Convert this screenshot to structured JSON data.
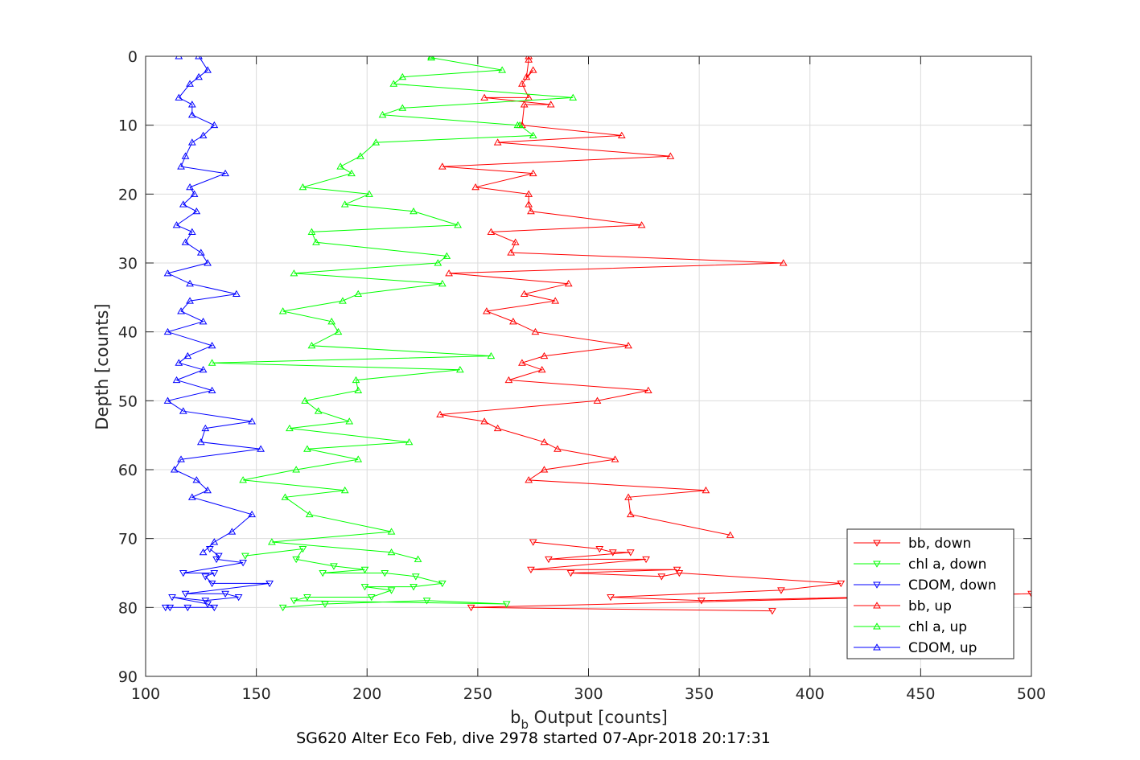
{
  "chart_data": {
    "type": "line",
    "caption": "SG620 Alter Eco Feb, dive 2978 started 07-Apr-2018 20:17:31",
    "xlabel_main": "b",
    "xlabel_sub": "b",
    "xlabel_rest": " Output [counts]",
    "ylabel": "Depth [counts]",
    "xlim": [
      100,
      500
    ],
    "ylim": [
      90,
      0
    ],
    "y_reversed": true,
    "grid": true,
    "legend_position": "bottom-right",
    "xticks": [
      "100",
      "150",
      "200",
      "250",
      "300",
      "350",
      "400",
      "450",
      "500"
    ],
    "yticks": [
      "0",
      "10",
      "20",
      "30",
      "40",
      "50",
      "60",
      "70",
      "80",
      "90"
    ],
    "series": [
      {
        "name": "bb, down",
        "color": "#ff0000",
        "marker": "triangle-down",
        "x": [
          275,
          305,
          311,
          319,
          282,
          326,
          274,
          340,
          292,
          333,
          341,
          414,
          387,
          310,
          351,
          500,
          247,
          383
        ],
        "y": [
          70.5,
          71.5,
          72,
          72,
          73,
          73,
          74.5,
          74.5,
          75,
          75.5,
          75,
          76.5,
          77.5,
          78.5,
          79,
          78,
          80,
          80.5
        ]
      },
      {
        "name": "chl a, down",
        "color": "#00ff00",
        "marker": "triangle-down",
        "x": [
          145,
          171,
          168,
          185,
          199,
          180,
          208,
          222,
          234,
          221,
          199,
          211,
          202,
          173,
          167,
          263,
          227,
          181,
          162
        ],
        "y": [
          72.5,
          71.5,
          73,
          74,
          74.5,
          75,
          75,
          75.5,
          76.5,
          77,
          77,
          77.5,
          78.5,
          78.5,
          79,
          79.5,
          79,
          79.5,
          80
        ]
      },
      {
        "name": "CDOM, down",
        "color": "#0000ff",
        "marker": "triangle-down",
        "x": [
          129,
          133,
          132,
          144,
          117,
          131,
          127,
          130,
          156,
          118,
          136,
          142,
          127,
          112,
          128,
          131,
          111,
          109,
          119
        ],
        "y": [
          71.5,
          72.5,
          73,
          73.5,
          75,
          75,
          75.5,
          76.5,
          76.5,
          78,
          78,
          78.5,
          79,
          78.5,
          79.5,
          80,
          80,
          80,
          80
        ]
      },
      {
        "name": "bb, up",
        "color": "#ff0000",
        "marker": "triangle-up",
        "x": [
          273,
          273,
          272,
          275,
          270,
          273,
          253,
          283,
          271,
          270,
          315,
          259,
          337,
          234,
          275,
          249,
          273,
          273,
          274,
          324,
          256,
          267,
          265,
          388,
          237,
          291,
          271,
          285,
          254,
          266,
          276,
          318,
          280,
          270,
          279,
          264,
          327,
          304,
          233,
          253,
          259,
          280,
          286,
          312,
          280,
          273,
          353,
          318,
          319,
          364
        ],
        "y": [
          0,
          0.5,
          3,
          2,
          4,
          6,
          6,
          7,
          7,
          10,
          11.5,
          12.5,
          14.5,
          16,
          17,
          19,
          20,
          21.5,
          22.5,
          24.5,
          25.5,
          27,
          28.5,
          30,
          31.5,
          33,
          34.5,
          35.5,
          37,
          38.5,
          40,
          42,
          43.5,
          44.5,
          45.5,
          47,
          48.5,
          50,
          52,
          53,
          54,
          56,
          57,
          58.5,
          60,
          61.5,
          63,
          64,
          66.5,
          69.5
        ]
      },
      {
        "name": "chl a, up",
        "color": "#00ff00",
        "marker": "triangle-up",
        "x": [
          229,
          229,
          261,
          216,
          212,
          293,
          216,
          207,
          268,
          269,
          275,
          204,
          197,
          188,
          193,
          171,
          201,
          190,
          221,
          241,
          175,
          177,
          236,
          232,
          167,
          234,
          196,
          189,
          162,
          184,
          187,
          175,
          256,
          130,
          242,
          195,
          196,
          172,
          178,
          192,
          165,
          219,
          173,
          196,
          168,
          144,
          190,
          163,
          174,
          211,
          157,
          211,
          223
        ],
        "y": [
          0,
          0.2,
          2,
          3,
          4,
          6,
          7.5,
          8.5,
          10,
          10,
          11.5,
          12.5,
          14.5,
          16,
          17,
          19,
          20,
          21.5,
          22.5,
          24.5,
          25.5,
          27,
          29,
          30,
          31.5,
          33,
          34.5,
          35.5,
          37,
          38.5,
          40,
          42,
          43.5,
          44.5,
          45.5,
          47,
          48.5,
          50,
          51.5,
          53,
          54,
          56,
          57,
          58.5,
          60,
          61.5,
          63,
          64,
          66.5,
          69,
          70.5,
          72,
          73
        ]
      },
      {
        "name": "CDOM, up",
        "color": "#0000ff",
        "marker": "triangle-up",
        "x": [
          115,
          124,
          128,
          124,
          120,
          115,
          121,
          121,
          131,
          126,
          121,
          118,
          116,
          136,
          120,
          122,
          117,
          123,
          114,
          121,
          118,
          125,
          128,
          110,
          120,
          141,
          120,
          116,
          126,
          110,
          130,
          119,
          115,
          126,
          114,
          130,
          110,
          117,
          148,
          127,
          125,
          152,
          116,
          113,
          123,
          128,
          121,
          148,
          139,
          131,
          126
        ],
        "y": [
          0,
          0,
          2,
          3,
          4,
          6,
          7,
          8.5,
          10,
          11.5,
          12.5,
          14.5,
          16,
          17,
          19,
          20,
          21.5,
          22.5,
          24.5,
          25.5,
          27,
          28.5,
          30,
          31.5,
          33,
          34.5,
          35.5,
          37,
          38.5,
          40,
          42,
          43.5,
          44.5,
          45.5,
          47,
          48.5,
          50,
          51.5,
          53,
          54,
          56,
          57,
          58.5,
          60,
          61.5,
          63,
          64,
          66.5,
          69,
          70.5,
          72
        ]
      }
    ]
  }
}
